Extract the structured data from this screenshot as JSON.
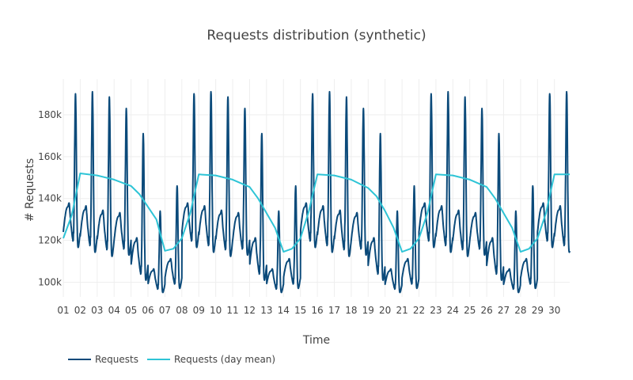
{
  "chart_data": {
    "type": "line",
    "title": "Requests distribution (synthetic)",
    "xlabel": "Time",
    "ylabel": "# Requests",
    "x_ticks": [
      "01",
      "02",
      "03",
      "04",
      "05",
      "06",
      "07",
      "08",
      "09",
      "10",
      "11",
      "12",
      "13",
      "14",
      "15",
      "16",
      "17",
      "18",
      "19",
      "20",
      "21",
      "22",
      "23",
      "24",
      "25",
      "26",
      "27",
      "28",
      "29",
      "30"
    ],
    "x_range_days": [
      1,
      30.9
    ],
    "ylim": [
      93000,
      197000
    ],
    "y_ticks": [
      100000,
      120000,
      140000,
      160000,
      180000
    ],
    "y_tick_labels": [
      "100k",
      "120k",
      "140k",
      "160k",
      "180k"
    ],
    "grid": true,
    "legend_position": "bottom-left",
    "series": [
      {
        "name": "Requests",
        "color": "#0b4a7a",
        "daily_peak": [
          190000,
          191000,
          188500,
          183000,
          171000,
          134000,
          146000,
          190000,
          191000,
          188500,
          183000,
          171000,
          134000,
          146000,
          190000,
          191000,
          188500,
          183000,
          171000,
          134000,
          146000,
          190000,
          191000,
          188500,
          183000,
          171000,
          134000,
          146000,
          190000,
          191000
        ],
        "daily_trough": [
          124000,
          122000,
          120000,
          120000,
          108000,
          99000,
          102000,
          124000,
          122000,
          120000,
          120000,
          108000,
          99000,
          102000,
          124000,
          122000,
          120000,
          120000,
          108000,
          99000,
          102000,
          124000,
          122000,
          120000,
          120000,
          108000,
          99000,
          102000,
          124000,
          122000
        ]
      },
      {
        "name": "Requests (day mean)",
        "color": "#2ec4d6",
        "x": [
          1.0,
          1.5,
          2.0,
          3.0,
          4.0,
          5.0,
          5.5,
          6.0,
          6.5,
          7.0,
          7.5,
          8.0,
          8.5,
          9.0,
          10.0,
          11.0,
          12.0,
          12.5,
          13.0,
          13.5,
          14.0,
          14.5,
          15.0,
          15.5,
          16.0,
          17.0,
          18.0,
          19.0,
          19.5,
          20.0,
          20.5,
          21.0,
          21.5,
          22.0,
          22.5,
          23.0,
          24.0,
          25.0,
          26.0,
          26.5,
          27.0,
          27.5,
          28.0,
          28.5,
          29.0,
          29.5,
          30.0,
          30.9
        ],
        "values": [
          121000,
          132000,
          152000,
          151000,
          149000,
          146000,
          142000,
          136000,
          130000,
          115000,
          116000,
          121000,
          133000,
          151500,
          151000,
          149000,
          145500,
          140000,
          133000,
          126000,
          114500,
          116000,
          121000,
          134000,
          151500,
          151000,
          149000,
          145000,
          141000,
          134000,
          126000,
          114500,
          116000,
          121000,
          133000,
          151500,
          151000,
          149000,
          145500,
          140000,
          133000,
          126000,
          114500,
          116000,
          121000,
          133000,
          151500,
          151500
        ]
      }
    ]
  }
}
